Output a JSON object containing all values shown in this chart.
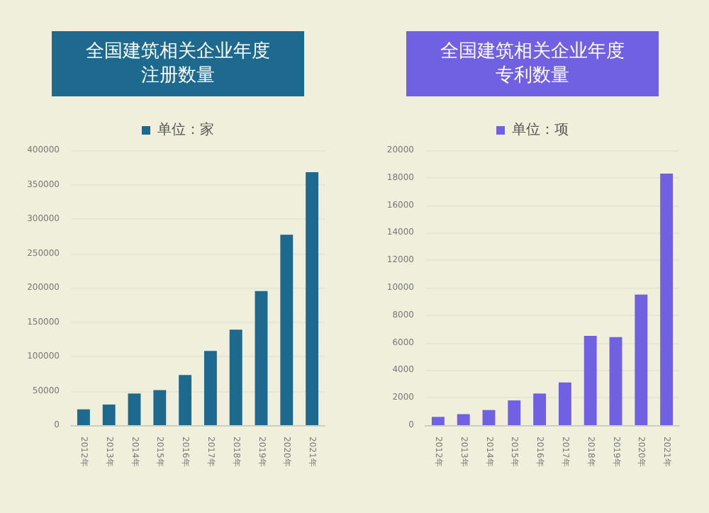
{
  "chart_data": [
    {
      "type": "bar",
      "title": "全国建筑相关企业年度注册数量",
      "categories": [
        "2012年",
        "2013年",
        "2014年",
        "2015年",
        "2016年",
        "2017年",
        "2018年",
        "2019年",
        "2020年",
        "2021年"
      ],
      "series": [
        {
          "name": "单位：家",
          "color": "#1e6a8f",
          "values": [
            23000,
            30000,
            46000,
            51000,
            73000,
            108000,
            139000,
            195000,
            277000,
            368000
          ]
        }
      ],
      "ylim": [
        0,
        400000
      ],
      "yticks": [
        0,
        50000,
        100000,
        150000,
        200000,
        250000,
        300000,
        350000,
        400000
      ],
      "grid": "y",
      "legend": "top"
    },
    {
      "type": "bar",
      "title": "全国建筑相关企业年度专利数量",
      "categories": [
        "2012年",
        "2013年",
        "2014年",
        "2015年",
        "2016年",
        "2017年",
        "2018年",
        "2019年",
        "2020年",
        "2021年"
      ],
      "series": [
        {
          "name": "单位：项",
          "color": "#6f61e2",
          "values": [
            600,
            800,
            1100,
            1800,
            2300,
            3100,
            6500,
            6400,
            9500,
            18300
          ]
        }
      ],
      "ylim": [
        0,
        20000
      ],
      "yticks": [
        0,
        2000,
        4000,
        6000,
        8000,
        10000,
        12000,
        14000,
        16000,
        18000,
        20000
      ],
      "grid": "y",
      "legend": "top"
    }
  ]
}
